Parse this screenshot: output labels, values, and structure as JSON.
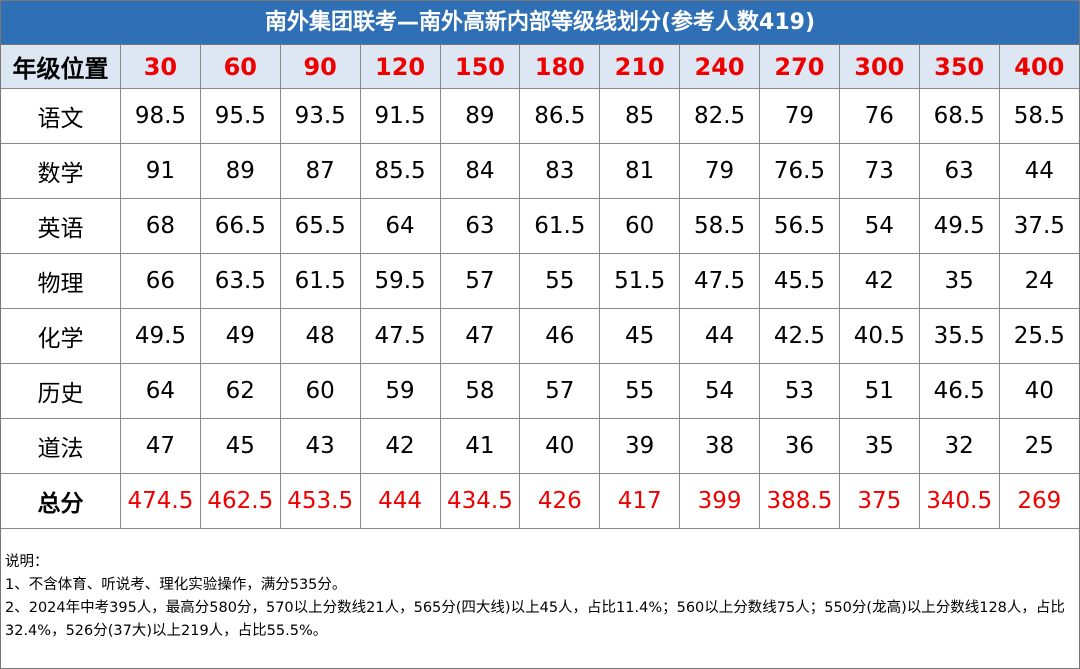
{
  "title": "南外集团联考—南外高新内部等级线划分(参考人数419)",
  "header": {
    "label": "年级位置",
    "ranks": [
      30,
      60,
      90,
      120,
      150,
      180,
      210,
      240,
      270,
      300,
      350,
      400
    ]
  },
  "rows": [
    [
      "语文",
      98.5,
      95.5,
      93.5,
      91.5,
      89,
      86.5,
      85,
      82.5,
      79,
      76,
      68.5,
      58.5
    ],
    [
      "数学",
      91,
      89,
      87,
      85.5,
      84,
      83,
      81,
      79,
      76.5,
      73,
      63,
      44
    ],
    [
      "英语",
      68,
      66.5,
      65.5,
      64,
      63,
      61.5,
      60,
      58.5,
      56.5,
      54,
      49.5,
      37.5
    ],
    [
      "物理",
      66,
      63.5,
      61.5,
      59.5,
      57,
      55,
      51.5,
      47.5,
      45.5,
      42,
      35,
      24
    ],
    [
      "化学",
      49.5,
      49,
      48,
      47.5,
      47,
      46,
      45,
      44,
      42.5,
      40.5,
      35.5,
      25.5
    ],
    [
      "历史",
      64,
      62,
      60,
      59,
      58,
      57,
      55,
      54,
      53,
      51,
      46.5,
      40
    ],
    [
      "道法",
      47,
      45,
      43,
      42,
      41,
      40,
      39,
      38,
      36,
      35,
      32,
      25
    ]
  ],
  "total": [
    "总分",
    474.5,
    462.5,
    453.5,
    444,
    434.5,
    426,
    417,
    399,
    388.5,
    375,
    340.5,
    269
  ],
  "notes": [
    "说明：",
    "1、不含体育、听说考、理化实验操作，满分535分。",
    "2、2024年中考395人，最高分580分，570以上分数线21人，565分(四大线)以上45人，占比11.4%；560以上分数线75人；550分(龙高)以上分数线128人，占比32.4%，526分(37大)以上219人，占比55.5%。"
  ]
}
